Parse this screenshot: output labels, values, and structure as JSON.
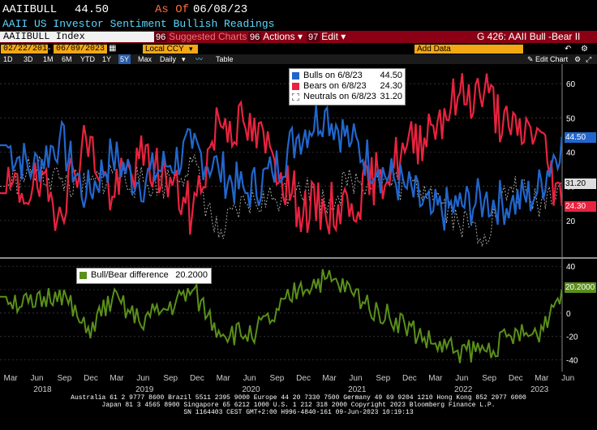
{
  "header": {
    "ticker": "AAIIBULL",
    "last": "44.50",
    "as_of_label": "As Of",
    "as_of_date": "06/08/23",
    "description": "AAII US Investor Sentiment Bullish Readings"
  },
  "toolbar": {
    "index_name": "AAIIBULL Index",
    "suggested_num": "96",
    "suggested": "Suggested Charts",
    "actions_num": "96",
    "actions": "Actions",
    "edit_num": "97",
    "edit": "Edit",
    "graph_title": "G 426: AAII Bull -Bear II"
  },
  "range": {
    "start": "02/22/2018",
    "end": "06/09/2023",
    "currency": "Local CCY",
    "add_data": "Add Data",
    "edit_chart": "Edit Chart"
  },
  "periods": [
    "1D",
    "3D",
    "1M",
    "6M",
    "YTD",
    "1Y",
    "5Y",
    "Max"
  ],
  "frequency": "Daily",
  "table_label": "Table",
  "legend_top": [
    {
      "name": "Bulls on 6/8/23",
      "value": "44.50",
      "color": "#2266cc"
    },
    {
      "name": "Bears on 6/8/23",
      "value": "24.30",
      "color": "#e8233f"
    },
    {
      "name": "Neutrals on 6/8/23",
      "value": "31.20",
      "color": "#aaaaaa"
    }
  ],
  "legend_bottom": {
    "name": "Bull/Bear difference",
    "value": "20.2000",
    "color": "#5a8f1a"
  },
  "tags": {
    "bulls": "44.50",
    "neutrals": "31.20",
    "bears": "24.30",
    "diff": "20.2000"
  },
  "colors": {
    "bulls": "#2266cc",
    "bears": "#e8233f",
    "neutrals": "#aaaaaa",
    "diff": "#5a8f1a",
    "bar": "#8b0015",
    "field": "#f4a814"
  },
  "x_months": [
    "Mar",
    "Jun",
    "Sep",
    "Dec",
    "Mar",
    "Jun",
    "Sep",
    "Dec",
    "Mar",
    "Jun",
    "Sep",
    "Dec",
    "Mar",
    "Jun",
    "Sep",
    "Dec",
    "Mar",
    "Jun",
    "Sep",
    "Dec",
    "Mar",
    "Jun"
  ],
  "x_years": [
    "2018",
    "2019",
    "2020",
    "2021",
    "2022",
    "2023"
  ],
  "footer": {
    "line1": "Australia 61 2 9777 8600 Brazil 5511 2395 9000 Europe 44 20 7330 7500 Germany 49 69 9204 1210 Hong Kong 852 2977 6000",
    "line2": "Japan 81 3 4565 8900 Singapore 65 6212 1000 U.S. 1 212 318 2000 Copyright 2023 Bloomberg Finance L.P.",
    "line3": "SN 1164403 CEST GMT+2:00 H996-4840-161 09-Jun-2023 10:19:13"
  },
  "chart_data": [
    {
      "type": "line",
      "title": "",
      "ylim": [
        10,
        65
      ],
      "yticks": [
        20,
        30,
        40,
        50,
        60
      ],
      "xlim": [
        "2018-02-22",
        "2023-06-09"
      ],
      "series": [
        {
          "name": "Bulls on 6/8/23",
          "x": [
            "2018-03",
            "2018-06",
            "2018-09",
            "2018-12",
            "2019-03",
            "2019-06",
            "2019-09",
            "2019-12",
            "2020-03",
            "2020-06",
            "2020-09",
            "2020-12",
            "2021-03",
            "2021-06",
            "2021-09",
            "2021-12",
            "2022-03",
            "2022-06",
            "2022-09",
            "2022-12",
            "2023-03",
            "2023-06-08"
          ],
          "values": [
            42,
            35,
            44,
            27,
            39,
            31,
            36,
            41,
            35,
            28,
            34,
            45,
            52,
            43,
            35,
            30,
            22,
            24,
            26,
            25,
            28,
            44.5
          ]
        },
        {
          "name": "Bears on 6/8/23",
          "x": [
            "2018-03",
            "2018-06",
            "2018-09",
            "2018-12",
            "2019-03",
            "2019-06",
            "2019-09",
            "2019-12",
            "2020-03",
            "2020-06",
            "2020-09",
            "2020-12",
            "2021-03",
            "2021-06",
            "2021-09",
            "2021-12",
            "2022-03",
            "2022-06",
            "2022-09",
            "2022-12",
            "2023-03",
            "2023-06-08"
          ],
          "values": [
            28,
            30,
            24,
            44,
            27,
            38,
            33,
            22,
            50,
            47,
            40,
            24,
            23,
            25,
            33,
            40,
            48,
            56,
            58,
            45,
            47,
            24.3
          ]
        },
        {
          "name": "Neutrals on 6/8/23",
          "x": [
            "2018-03",
            "2018-06",
            "2018-09",
            "2018-12",
            "2019-03",
            "2019-06",
            "2019-09",
            "2019-12",
            "2020-03",
            "2020-06",
            "2020-09",
            "2020-12",
            "2021-03",
            "2021-06",
            "2021-09",
            "2021-12",
            "2022-03",
            "2022-06",
            "2022-09",
            "2022-12",
            "2023-03",
            "2023-06-08"
          ],
          "values": [
            30,
            35,
            32,
            29,
            34,
            31,
            31,
            37,
            15,
            25,
            26,
            31,
            25,
            32,
            32,
            30,
            30,
            20,
            16,
            30,
            25,
            31.2
          ]
        }
      ]
    },
    {
      "type": "line",
      "ylim": [
        -50,
        45
      ],
      "yticks": [
        -40,
        -20,
        0,
        20,
        40
      ],
      "series": [
        {
          "name": "Bull/Bear difference",
          "x": [
            "2018-03",
            "2018-06",
            "2018-09",
            "2018-12",
            "2019-03",
            "2019-06",
            "2019-09",
            "2019-12",
            "2020-03",
            "2020-06",
            "2020-09",
            "2020-12",
            "2021-03",
            "2021-06",
            "2021-09",
            "2021-12",
            "2022-03",
            "2022-06",
            "2022-09",
            "2022-12",
            "2023-03",
            "2023-06-08"
          ],
          "values": [
            14,
            5,
            20,
            -17,
            12,
            -7,
            3,
            19,
            -15,
            -19,
            -6,
            21,
            29,
            18,
            2,
            -10,
            -26,
            -32,
            -32,
            -20,
            -19,
            20.2
          ]
        }
      ]
    }
  ]
}
